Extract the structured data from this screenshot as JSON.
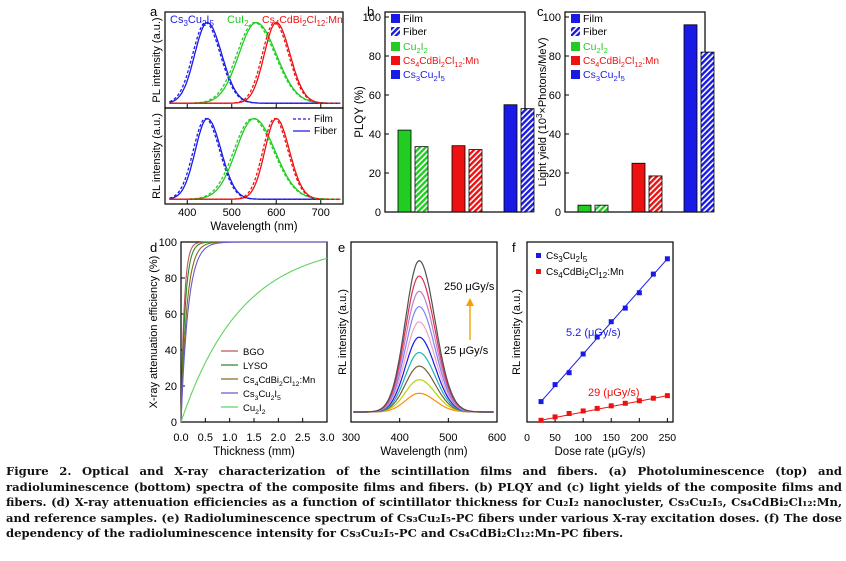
{
  "panel_letters": [
    "a",
    "b",
    "c",
    "d",
    "e",
    "f"
  ],
  "caption": {
    "text": "Figure 2. Optical and X-ray characterization of the scintillation films and fibers. (a) Photoluminescence (top) and radioluminescence (bottom) spectra of the composite films and fibers. (b) PLQY and (c) light yields of the composite films and fibers. (d) X-ray attenuation efficiencies as a function of scintillator thickness for Cu₂I₂ nanocluster, Cs₃Cu₂I₅, Cs₄CdBi₂Cl₁₂:Mn, and reference samples. (e) Radioluminescence spectrum of Cs₃Cu₂I₅-PC fibers under various X-ray excitation doses. (f) The dose dependency of the radioluminescence intensity for Cs₃Cu₂I₅-PC and Cs₄CdBi₂Cl₁₂:Mn-PC fibers."
  },
  "colors": {
    "blue": "#1a1ae6",
    "green": "#22cc22",
    "red": "#ee1111",
    "bgo": "#b85a5a",
    "lyso": "#2a8a2a",
    "cdbi": "#8a6a1a",
    "cscu": "#6a5acd",
    "cui": "#5fd35f"
  },
  "chart_data": [
    {
      "panel": "a",
      "type": "line",
      "xlabel": "Wavelength (nm)",
      "x_ticks": [
        400,
        500,
        600,
        700
      ],
      "xlim": [
        350,
        750
      ],
      "top": {
        "ylabel": "PL intensity (a.u.)",
        "labels": [
          "Cs3Cu2I5",
          "CuI2",
          "Cs4CdBi2Cl12:Mn"
        ],
        "series": [
          {
            "name": "Cs3Cu2I5",
            "center": 445,
            "width": 42
          },
          {
            "name": "CuI2",
            "center": 555,
            "width": 58
          },
          {
            "name": "Cs4CdBi2Cl12:Mn",
            "center": 600,
            "width": 40
          }
        ]
      },
      "bottom": {
        "ylabel": "RL intensity (a.u.)",
        "legend": [
          "Film",
          "Fiber"
        ],
        "series": [
          {
            "name": "Cs3Cu2I5",
            "center": 445,
            "width": 40
          },
          {
            "name": "CuI2",
            "center": 550,
            "width": 60
          },
          {
            "name": "Cs4CdBi2Cl12:Mn",
            "center": 600,
            "width": 38
          }
        ]
      }
    },
    {
      "panel": "b",
      "type": "bar",
      "ylabel": "PLQY (%)",
      "ylim": [
        0,
        100
      ],
      "y_ticks": [
        0,
        20,
        40,
        60,
        80,
        100
      ],
      "legend": [
        "Film",
        "Fiber",
        "Cu2I2",
        "Cs4CdBi2Cl12:Mn",
        "Cs3Cu2I5"
      ],
      "categories": [
        "Cu2I2",
        "Cs4CdBi2Cl12:Mn",
        "Cs3Cu2I5"
      ],
      "series": [
        {
          "name": "Film",
          "values": [
            42,
            34,
            55
          ]
        },
        {
          "name": "Fiber",
          "values": [
            33.5,
            32,
            53
          ]
        }
      ]
    },
    {
      "panel": "c",
      "type": "bar",
      "ylabel": "Light yield (10³×Photons/MeV)",
      "ylim": [
        0,
        100
      ],
      "y_ticks": [
        0,
        20,
        40,
        60,
        80,
        100
      ],
      "legend": [
        "Film",
        "Fiber",
        "Cu2I2",
        "Cs4CdBi2Cl12:Mn",
        "Cs3Cu2I5"
      ],
      "categories": [
        "Cu2I2",
        "Cs4CdBi2Cl12:Mn",
        "Cs3Cu2I5"
      ],
      "series": [
        {
          "name": "Film",
          "values": [
            3.5,
            25,
            96
          ]
        },
        {
          "name": "Fiber",
          "values": [
            3.5,
            18.5,
            82
          ]
        }
      ]
    },
    {
      "panel": "d",
      "type": "line",
      "xlabel": "Thickness (mm)",
      "ylabel": "X-ray attenuation efficiency (%)",
      "xlim": [
        0,
        3.0
      ],
      "ylim": [
        0,
        100
      ],
      "x_ticks": [
        "0.0",
        "0.5",
        "1.0",
        "1.5",
        "2.0",
        "2.5",
        "3.0"
      ],
      "y_ticks": [
        0,
        20,
        40,
        60,
        80,
        100
      ],
      "legend": [
        "BGO",
        "LYSO",
        "Cs4CdBi2Cl12:Mn",
        "Cs3Cu2I5",
        "Cu2I2"
      ],
      "series": [
        {
          "name": "BGO",
          "decay_mm": 0.065
        },
        {
          "name": "LYSO",
          "decay_mm": 0.085
        },
        {
          "name": "Cs4CdBi2Cl12:Mn",
          "decay_mm": 0.12
        },
        {
          "name": "Cs3Cu2I5",
          "decay_mm": 0.15
        },
        {
          "name": "Cu2I2",
          "decay_mm": 1.25
        }
      ]
    },
    {
      "panel": "e",
      "type": "line",
      "xlabel": "Wavelength (nm)",
      "ylabel": "RL intensity (a.u.)",
      "xlim": [
        300,
        600
      ],
      "x_ticks": [
        300,
        400,
        500,
        600
      ],
      "annotations": [
        "250 μGy/s",
        "25  μGy/s"
      ],
      "center": 440,
      "width": 42,
      "peak_heights": [
        0.11,
        0.19,
        0.27,
        0.35,
        0.44,
        0.53,
        0.62,
        0.71,
        0.8,
        0.89
      ],
      "series_colors": [
        "#ff8c00",
        "#b6d400",
        "#7a5c3a",
        "#1fb5b5",
        "#1a1ae6",
        "#f4a0c0",
        "#8080ff",
        "#c080c0",
        "#e03050",
        "#505050"
      ]
    },
    {
      "panel": "f",
      "type": "scatter",
      "xlabel": "Dose rate (μGy/s)",
      "ylabel": "RL intensity (a.u.)",
      "xlim": [
        0,
        260
      ],
      "ylim": [
        0,
        1.0
      ],
      "x_ticks": [
        0,
        50,
        100,
        150,
        200,
        250
      ],
      "x": [
        25,
        50,
        75,
        100,
        125,
        150,
        175,
        200,
        225,
        250
      ],
      "legend": [
        "Cs3Cu2I5",
        "Cs4CdBi2Cl12:Mn"
      ],
      "slope_labels": [
        "5.2 (μGy/s)",
        "29 (μGy/s)"
      ],
      "series": [
        {
          "name": "Cs3Cu2I5",
          "values": [
            0.12,
            0.22,
            0.29,
            0.4,
            0.5,
            0.59,
            0.67,
            0.76,
            0.87,
            0.96
          ]
        },
        {
          "name": "Cs4CdBi2Cl12:Mn",
          "values": [
            0.01,
            0.03,
            0.05,
            0.065,
            0.08,
            0.095,
            0.11,
            0.125,
            0.14,
            0.155
          ]
        }
      ]
    }
  ]
}
